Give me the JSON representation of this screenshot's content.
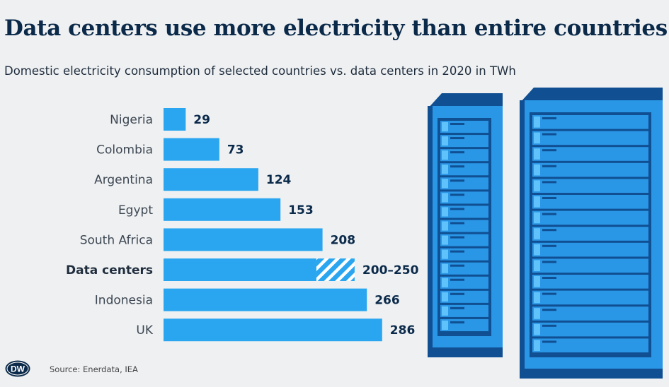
{
  "header": {
    "title": "Data centers use more electricity than entire countries",
    "subtitle": "Domestic electricity consumption of selected countries vs. data centers in 2020 in TWh"
  },
  "footer": {
    "source": "Source: Enerdata, IEA",
    "logo_text": "DW"
  },
  "colors": {
    "bar": "#29a6ef",
    "label": "#3d4752",
    "value": "#0b2a4a",
    "server_body": "#2a96e6",
    "server_dark": "#0f4f92",
    "server_light": "#5fc2fb"
  },
  "chart_data": {
    "type": "bar",
    "orientation": "horizontal",
    "title": "Data centers use more electricity than entire countries",
    "subtitle": "Domestic electricity consumption of selected countries vs. data centers in 2020 in TWh",
    "unit": "TWh",
    "categories": [
      "Nigeria",
      "Colombia",
      "Argentina",
      "Egypt",
      "South Africa",
      "Data centers",
      "Indonesia",
      "UK"
    ],
    "values": [
      29,
      73,
      124,
      153,
      208,
      200,
      266,
      286
    ],
    "range_max": [
      null,
      null,
      null,
      null,
      null,
      250,
      null,
      null
    ],
    "value_labels": [
      "29",
      "73",
      "124",
      "153",
      "208",
      "200–250",
      "266",
      "286"
    ],
    "highlight": [
      "Data centers"
    ],
    "xlim": [
      0,
      300
    ],
    "grid": false,
    "legend": "none"
  }
}
